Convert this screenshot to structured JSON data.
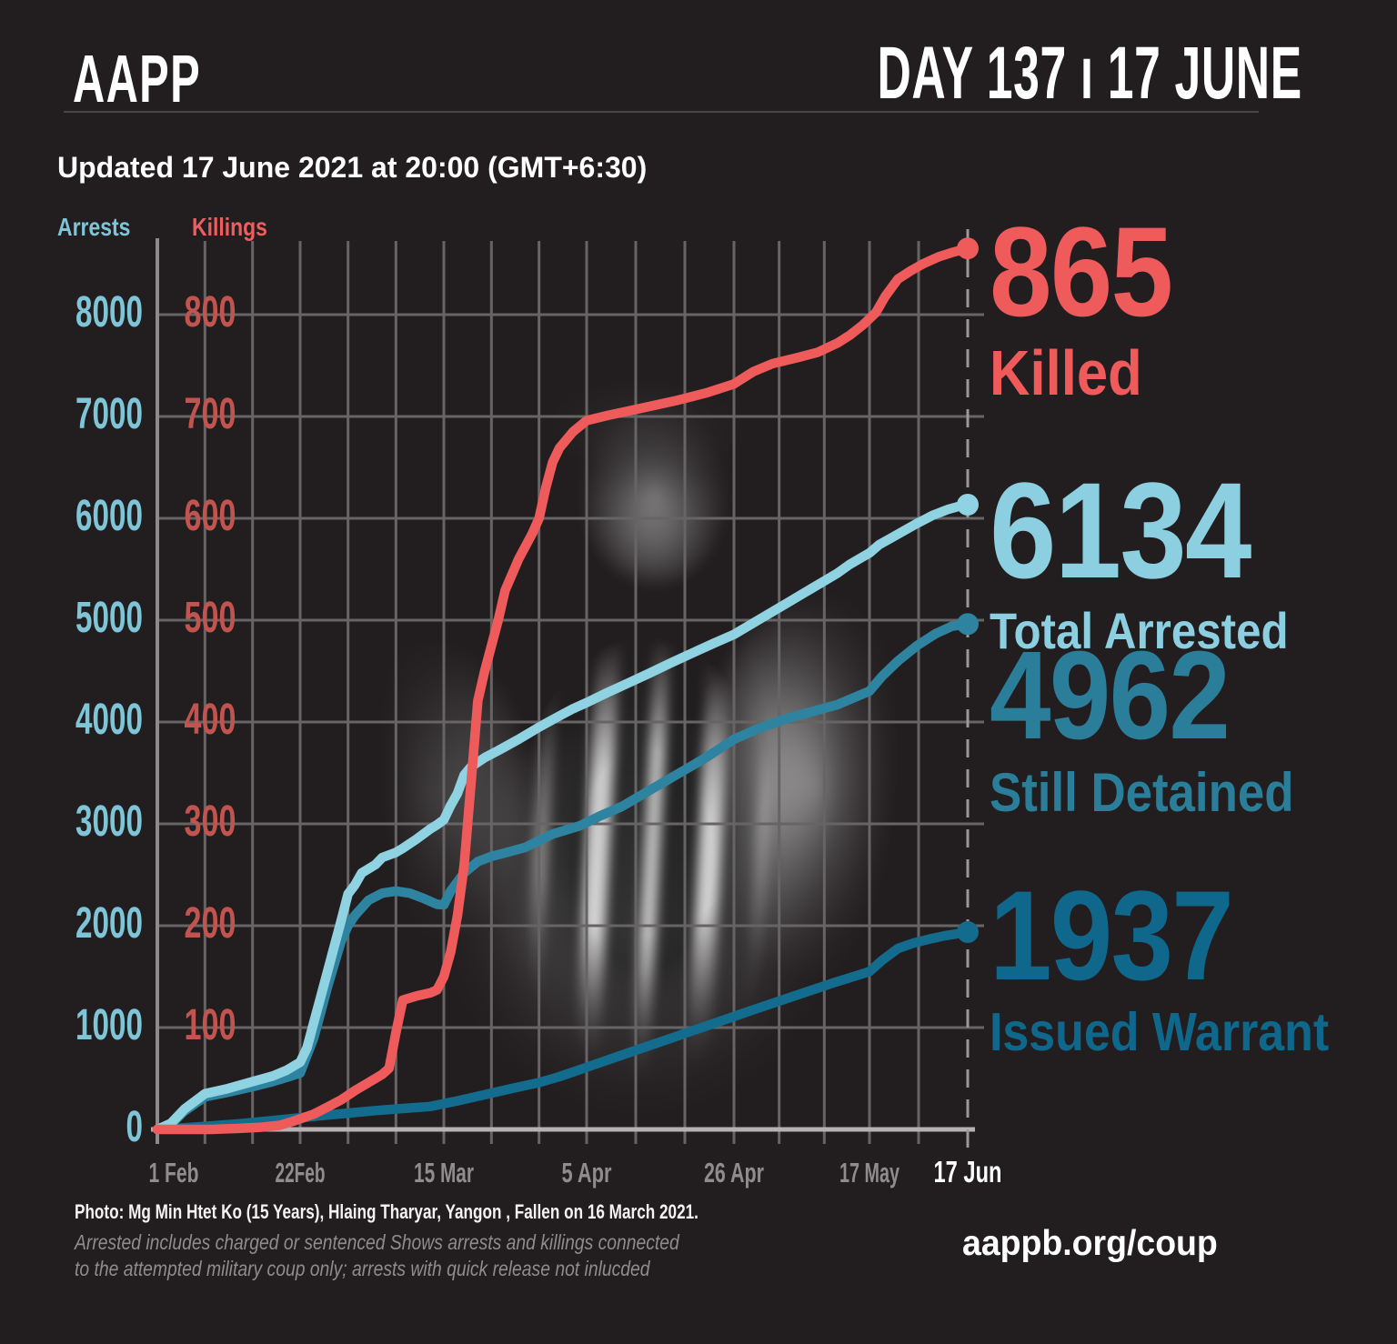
{
  "header": {
    "logo": "AAPP",
    "day_label": "DAY 137 ı 17 JUNE"
  },
  "meta": {
    "updated": "Updated 17 June 2021 at 20:00 (GMT+6:30)"
  },
  "legend": {
    "arrests_label": "Arrests",
    "killings_label": "Killings",
    "arrests_color": "#7fc5d8",
    "killings_color": "#ee5e5e"
  },
  "stats": [
    {
      "id": "killed",
      "value": "865",
      "label": "Killed",
      "color": "#ef5a5b"
    },
    {
      "id": "arrested",
      "value": "6134",
      "label": "Total Arrested",
      "color": "#8bcfe0"
    },
    {
      "id": "detained",
      "value": "4962",
      "label": "Still Detained",
      "color": "#2b7e9a"
    },
    {
      "id": "warrant",
      "value": "1937",
      "label": "Issued Warrant",
      "color": "#0f688c"
    }
  ],
  "footer": {
    "photo_caption": "Photo: Mg Min Htet Ko (15 Years), Hlaing Tharyar, Yangon , Fallen on 16 March 2021.",
    "note_line1": "Arrested includes charged or sentenced Shows arrests and killings connected",
    "note_line2": "to the attempted military coup only; arrests with quick release not inlucded",
    "website": "aappb.org/coup"
  },
  "chart_data": {
    "type": "line",
    "title": "Arrests and killings connected to the attempted military coup, cumulative by date",
    "grid": true,
    "x_axis": {
      "unit": "days since 1 Feb 2021",
      "range": [
        0,
        136
      ],
      "labels": [
        {
          "label": "1 Feb",
          "day": 0,
          "emphasis": false
        },
        {
          "label": "22Feb",
          "day": 21,
          "emphasis": false
        },
        {
          "label": "15 Mar",
          "day": 42,
          "emphasis": false
        },
        {
          "label": "5 Apr",
          "day": 63,
          "emphasis": false
        },
        {
          "label": "26 Apr",
          "day": 84,
          "emphasis": false
        },
        {
          "label": "17 May",
          "day": 105,
          "emphasis": false
        },
        {
          "label": "17 Jun",
          "day": 136,
          "emphasis": true
        }
      ]
    },
    "y_left": {
      "name": "Arrests",
      "color": "#7fc5d8",
      "min": 0,
      "max": 8000,
      "ticks": [
        0,
        1000,
        2000,
        3000,
        4000,
        5000,
        6000,
        7000,
        8000
      ]
    },
    "y_right": {
      "name": "Killings",
      "color": "#c25450",
      "min": 0,
      "max": 800,
      "ticks": [
        100,
        200,
        300,
        400,
        500,
        600,
        700,
        800
      ]
    },
    "series": [
      {
        "id": "warrant",
        "name": "Issued Warrant",
        "axis": "left",
        "color": "#136b8d",
        "final_value": 1937,
        "points": [
          [
            0,
            0
          ],
          [
            4,
            15
          ],
          [
            8,
            35
          ],
          [
            12,
            55
          ],
          [
            16,
            80
          ],
          [
            20,
            107
          ],
          [
            24,
            135
          ],
          [
            28,
            160
          ],
          [
            32,
            185
          ],
          [
            36,
            205
          ],
          [
            40,
            225
          ],
          [
            44,
            280
          ],
          [
            48,
            340
          ],
          [
            52,
            402
          ],
          [
            56,
            460
          ],
          [
            59,
            518
          ],
          [
            63,
            610
          ],
          [
            67,
            705
          ],
          [
            71,
            800
          ],
          [
            75,
            895
          ],
          [
            79,
            990
          ],
          [
            83,
            1085
          ],
          [
            87,
            1175
          ],
          [
            91,
            1260
          ],
          [
            95,
            1345
          ],
          [
            99,
            1430
          ],
          [
            103,
            1510
          ],
          [
            105,
            1550
          ],
          [
            109,
            1660
          ],
          [
            114,
            1777
          ],
          [
            119,
            1830
          ],
          [
            124,
            1870
          ],
          [
            129,
            1903
          ],
          [
            133,
            1922
          ],
          [
            136,
            1937
          ]
        ]
      },
      {
        "id": "detained",
        "name": "Still Detained",
        "axis": "left",
        "color": "#2e84a0",
        "final_value": 4962,
        "points": [
          [
            0,
            0
          ],
          [
            2,
            50
          ],
          [
            4,
            180
          ],
          [
            7,
            320
          ],
          [
            10,
            360
          ],
          [
            14,
            420
          ],
          [
            17,
            470
          ],
          [
            19,
            510
          ],
          [
            21,
            554
          ],
          [
            23,
            900
          ],
          [
            24,
            1150
          ],
          [
            25,
            1400
          ],
          [
            26,
            1625
          ],
          [
            27,
            1850
          ],
          [
            28,
            2000
          ],
          [
            29,
            2100
          ],
          [
            31,
            2250
          ],
          [
            33,
            2320
          ],
          [
            35,
            2340
          ],
          [
            37,
            2320
          ],
          [
            39,
            2270
          ],
          [
            41,
            2210
          ],
          [
            42,
            2205
          ],
          [
            43,
            2340
          ],
          [
            45,
            2520
          ],
          [
            47,
            2630
          ],
          [
            49,
            2680
          ],
          [
            51,
            2715
          ],
          [
            54,
            2770
          ],
          [
            58,
            2900
          ],
          [
            62,
            2980
          ],
          [
            65,
            3080
          ],
          [
            68,
            3170
          ],
          [
            71,
            3290
          ],
          [
            74,
            3410
          ],
          [
            77,
            3530
          ],
          [
            80,
            3650
          ],
          [
            82,
            3740
          ],
          [
            84,
            3830
          ],
          [
            88,
            3940
          ],
          [
            92,
            4030
          ],
          [
            96,
            4100
          ],
          [
            100,
            4170
          ],
          [
            105,
            4304
          ],
          [
            109,
            4450
          ],
          [
            114,
            4600
          ],
          [
            120,
            4750
          ],
          [
            126,
            4870
          ],
          [
            131,
            4940
          ],
          [
            136,
            4962
          ]
        ]
      },
      {
        "id": "arrested",
        "name": "Total Arrested",
        "axis": "left",
        "color": "#8fd2e2",
        "final_value": 6134,
        "points": [
          [
            0,
            0
          ],
          [
            2,
            60
          ],
          [
            4,
            200
          ],
          [
            7,
            350
          ],
          [
            10,
            395
          ],
          [
            14,
            470
          ],
          [
            17,
            525
          ],
          [
            19,
            580
          ],
          [
            21,
            660
          ],
          [
            22,
            800
          ],
          [
            23,
            1050
          ],
          [
            24,
            1300
          ],
          [
            25,
            1550
          ],
          [
            26,
            1800
          ],
          [
            27,
            2050
          ],
          [
            28,
            2312
          ],
          [
            29,
            2400
          ],
          [
            30,
            2518
          ],
          [
            32,
            2600
          ],
          [
            33,
            2670
          ],
          [
            35,
            2720
          ],
          [
            36,
            2760
          ],
          [
            38,
            2850
          ],
          [
            40,
            2950
          ],
          [
            41,
            2991
          ],
          [
            42,
            3040
          ],
          [
            43,
            3180
          ],
          [
            44,
            3300
          ],
          [
            45,
            3480
          ],
          [
            46,
            3560
          ],
          [
            48,
            3650
          ],
          [
            50,
            3720
          ],
          [
            53,
            3830
          ],
          [
            56,
            3950
          ],
          [
            59,
            4060
          ],
          [
            61,
            4130
          ],
          [
            63,
            4190
          ],
          [
            66,
            4290
          ],
          [
            69,
            4385
          ],
          [
            72,
            4480
          ],
          [
            75,
            4580
          ],
          [
            78,
            4675
          ],
          [
            81,
            4770
          ],
          [
            84,
            4860
          ],
          [
            88,
            5010
          ],
          [
            92,
            5160
          ],
          [
            96,
            5310
          ],
          [
            100,
            5460
          ],
          [
            102,
            5550
          ],
          [
            105,
            5660
          ],
          [
            108,
            5740
          ],
          [
            112,
            5810
          ],
          [
            116,
            5880
          ],
          [
            120,
            5950
          ],
          [
            125,
            6030
          ],
          [
            130,
            6090
          ],
          [
            133,
            6115
          ],
          [
            136,
            6134
          ]
        ]
      },
      {
        "id": "killed",
        "name": "Killed",
        "axis": "right",
        "color": "#ef5a5b",
        "final_value": 865,
        "points": [
          [
            0,
            0
          ],
          [
            8,
            0
          ],
          [
            12,
            1
          ],
          [
            15,
            2
          ],
          [
            18,
            4
          ],
          [
            20,
            8
          ],
          [
            23,
            15
          ],
          [
            25,
            22
          ],
          [
            27,
            29
          ],
          [
            29,
            38
          ],
          [
            31,
            46
          ],
          [
            33,
            54
          ],
          [
            34,
            60
          ],
          [
            35,
            95
          ],
          [
            36,
            127
          ],
          [
            38,
            131
          ],
          [
            40,
            134
          ],
          [
            41,
            137
          ],
          [
            42,
            150
          ],
          [
            43,
            174
          ],
          [
            44,
            210
          ],
          [
            45,
            260
          ],
          [
            46,
            340
          ],
          [
            47,
            421
          ],
          [
            48,
            450
          ],
          [
            50,
            500
          ],
          [
            51,
            529
          ],
          [
            53,
            560
          ],
          [
            55,
            585
          ],
          [
            56,
            600
          ],
          [
            57,
            630
          ],
          [
            58,
            655
          ],
          [
            59,
            669
          ],
          [
            61,
            685
          ],
          [
            63,
            696
          ],
          [
            66,
            701
          ],
          [
            70,
            707
          ],
          [
            76,
            716
          ],
          [
            80,
            723
          ],
          [
            84,
            732
          ],
          [
            87,
            744
          ],
          [
            90,
            752
          ],
          [
            94,
            758
          ],
          [
            97,
            763
          ],
          [
            100,
            772
          ],
          [
            102,
            780
          ],
          [
            104,
            790
          ],
          [
            107,
            802
          ],
          [
            110,
            818
          ],
          [
            114,
            835
          ],
          [
            118,
            843
          ],
          [
            122,
            850
          ],
          [
            127,
            857
          ],
          [
            131,
            861
          ],
          [
            136,
            865
          ]
        ]
      }
    ]
  }
}
